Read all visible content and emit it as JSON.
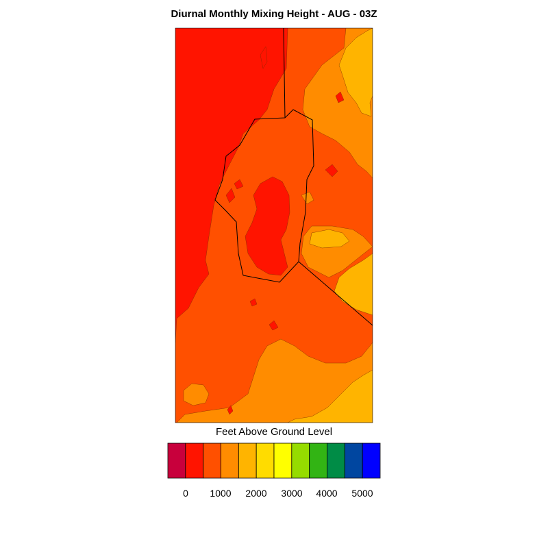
{
  "title": "Diurnal Monthly Mixing Height - AUG - 03Z",
  "legend": {
    "title": "Feet Above Ground Level",
    "colors": [
      "#c8003c",
      "#ff1400",
      "#ff5000",
      "#ff8c00",
      "#ffb400",
      "#ffdc00",
      "#ffff00",
      "#96dc00",
      "#32b414",
      "#008c46",
      "#0046a0",
      "#0000ff"
    ],
    "tick_labels": [
      "0",
      "1000",
      "2000",
      "3000",
      "4000",
      "5000"
    ]
  },
  "map": {
    "fill_colors": {
      "red": "#ff1400",
      "dark_orange": "#ff5000",
      "orange": "#ff8c00",
      "amber": "#ffb400"
    }
  }
}
